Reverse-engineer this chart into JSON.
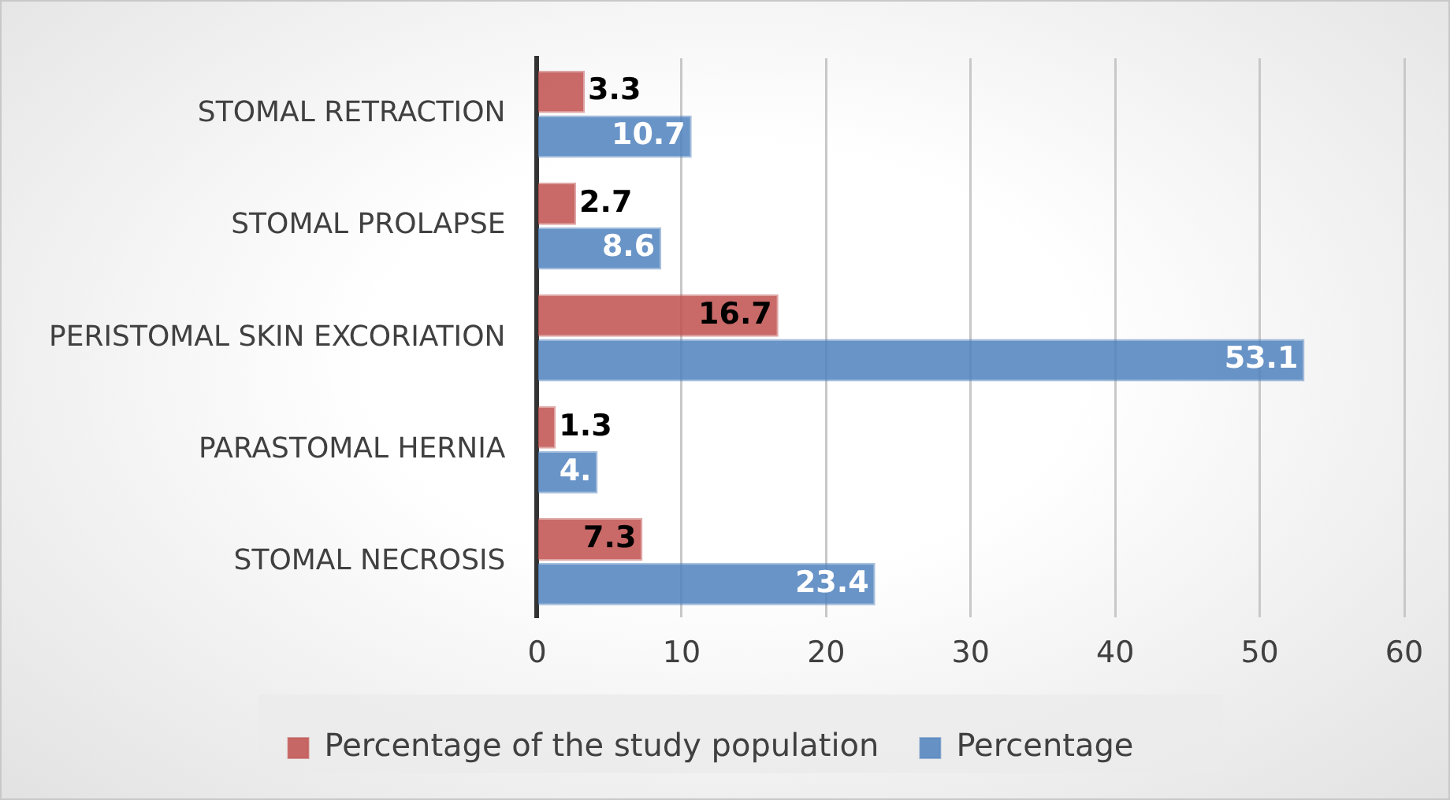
{
  "chart_data": {
    "type": "bar",
    "orientation": "horizontal",
    "categories": [
      "STOMAL RETRACTION",
      "STOMAL PROLAPSE",
      "PERISTOMAL SKIN EXCORIATION",
      "PARASTOMAL HERNIA",
      "STOMAL NECROSIS"
    ],
    "series": [
      {
        "name": "Percentage of the study population",
        "color": "#c0504d",
        "values": [
          3.3,
          2.7,
          16.7,
          1.3,
          7.3
        ],
        "value_labels": [
          "3.3",
          "2.7",
          "16.7",
          "1.3",
          "7.3"
        ]
      },
      {
        "name": "Percentage",
        "color": "#4f81bd",
        "values": [
          10.7,
          8.6,
          53.1,
          4.2,
          23.4
        ],
        "value_labels": [
          "10.7",
          "8.6",
          "53.1",
          "4.",
          "23.4"
        ]
      }
    ],
    "xlim": [
      0,
      60
    ],
    "xticks": [
      0,
      10,
      20,
      30,
      40,
      50,
      60
    ],
    "grid": "x",
    "legend": "bottom"
  }
}
